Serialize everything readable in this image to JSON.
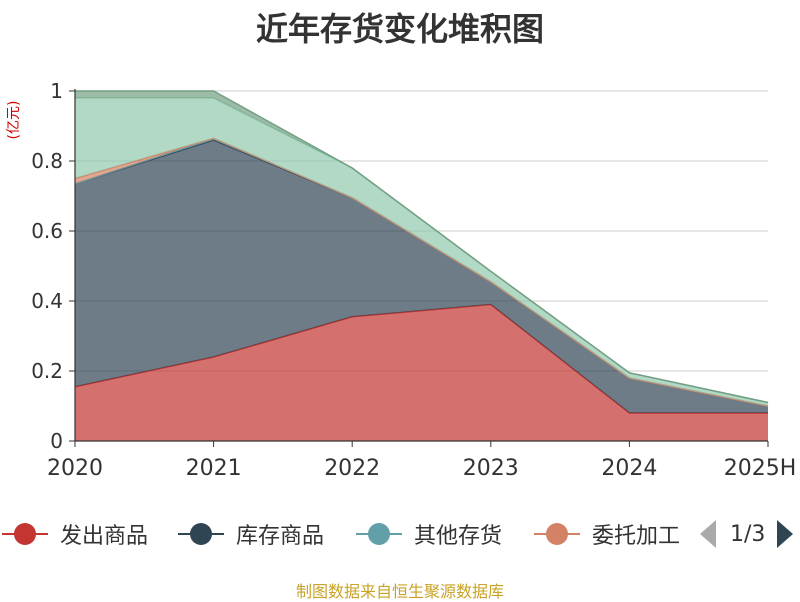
{
  "title": "近年存货变化堆积图",
  "source_note": "制图数据来自恒生聚源数据库",
  "chart_data": {
    "type": "area",
    "stacked": true,
    "ylabel": "(亿元)",
    "ylim": [
      0,
      1
    ],
    "yticks": [
      "0",
      "0.2",
      "0.4",
      "0.6",
      "0.8",
      "1"
    ],
    "categories": [
      "2020",
      "2021",
      "2022",
      "2023",
      "2024",
      "2025H"
    ],
    "grid": true,
    "legend_position": "bottom",
    "series": [
      {
        "name": "发出商品",
        "color": "#c23531",
        "values": [
          0.155,
          0.24,
          0.355,
          0.39,
          0.08,
          0.08
        ]
      },
      {
        "name": "库存商品",
        "color": "#2f4554",
        "values": [
          0.58,
          0.62,
          0.34,
          0.065,
          0.1,
          0.02
        ]
      },
      {
        "name": "其他存货",
        "color": "#61a0a8",
        "values": [
          0.0,
          0.005,
          0.0,
          0.0,
          0.0,
          0.0
        ]
      },
      {
        "name": "委托加工",
        "color": "#d48265",
        "values": [
          0.015,
          0.0,
          0.0,
          0.0,
          0.0,
          0.0
        ]
      },
      {
        "name": "",
        "color": "#91c7ae",
        "values": [
          0.23,
          0.115,
          0.085,
          0.03,
          0.015,
          0.01
        ]
      },
      {
        "name": "",
        "color": "#749f83",
        "values": [
          0.02,
          0.02,
          0.0,
          0.0,
          0.0,
          0.0
        ]
      }
    ],
    "legend_page": "1/3"
  }
}
